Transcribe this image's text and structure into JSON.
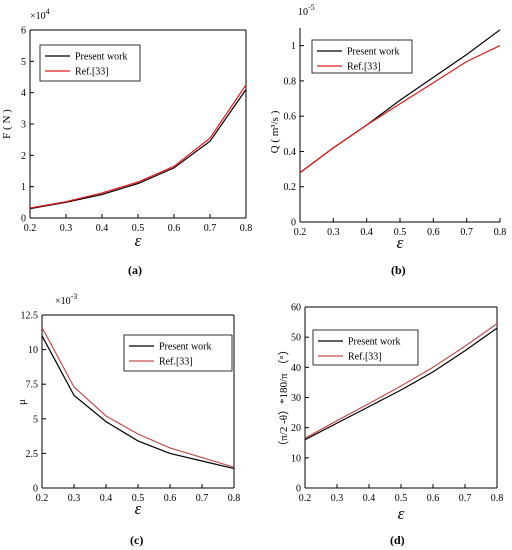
{
  "chart_data": [
    {
      "id": "a",
      "caption": "(a)",
      "type": "line",
      "ylabel": "F ( N )",
      "xlabel": "ε",
      "exponent": "×10",
      "exponent_power": "4",
      "xlim": [
        0.2,
        0.8
      ],
      "ylim": [
        0,
        6
      ],
      "xticks": [
        0.2,
        0.3,
        0.4,
        0.5,
        0.6,
        0.7,
        0.8
      ],
      "yticks": [
        0,
        1,
        2,
        3,
        4,
        5,
        6
      ],
      "xtick_labels": [
        "0.2",
        "0.3",
        "0.4",
        "0.5",
        "0.6",
        "0.7",
        "0.8"
      ],
      "ytick_labels": [
        "0",
        "1",
        "2",
        "3",
        "4",
        "5",
        "6"
      ],
      "box": "full",
      "legend_position": "top-left",
      "series": [
        {
          "name": "Present work",
          "color": "#000000",
          "x": [
            0.2,
            0.3,
            0.4,
            0.5,
            0.6,
            0.7,
            0.8
          ],
          "y": [
            0.3,
            0.5,
            0.75,
            1.1,
            1.6,
            2.45,
            4.1
          ]
        },
        {
          "name": "Ref.[33]",
          "color": "#e31a1c",
          "x": [
            0.2,
            0.3,
            0.4,
            0.5,
            0.6,
            0.7,
            0.8
          ],
          "y": [
            0.32,
            0.52,
            0.8,
            1.15,
            1.65,
            2.55,
            4.25
          ]
        }
      ]
    },
    {
      "id": "b",
      "caption": "(b)",
      "type": "line",
      "ylabel": "Q ( m³/s )",
      "xlabel": "ε",
      "exponent": "10",
      "exponent_power": "-5",
      "xlim": [
        0.2,
        0.8
      ],
      "ylim": [
        0,
        1.1
      ],
      "xticks": [
        0.2,
        0.3,
        0.4,
        0.5,
        0.6,
        0.7,
        0.8
      ],
      "yticks": [
        0,
        0.2,
        0.4,
        0.6,
        0.8,
        1
      ],
      "xtick_labels": [
        "0.2",
        "0.3",
        "0.4",
        "0.5",
        "0.6",
        "0.7",
        "0.8"
      ],
      "ytick_labels": [
        "0",
        "0.2",
        "0.4",
        "0.6",
        "0.8",
        "1"
      ],
      "box": "left-bottom",
      "legend_position": "top-left",
      "series": [
        {
          "name": "Present work",
          "color": "#000000",
          "x": [
            0.2,
            0.3,
            0.4,
            0.5,
            0.6,
            0.7,
            0.8
          ],
          "y": [
            0.28,
            0.42,
            0.55,
            0.69,
            0.82,
            0.95,
            1.09
          ]
        },
        {
          "name": "Ref.[33]",
          "color": "#e31a1c",
          "x": [
            0.2,
            0.3,
            0.4,
            0.5,
            0.6,
            0.7,
            0.8
          ],
          "y": [
            0.28,
            0.42,
            0.55,
            0.67,
            0.79,
            0.91,
            1.0
          ]
        }
      ]
    },
    {
      "id": "c",
      "caption": "(c)",
      "type": "line",
      "ylabel": "μ",
      "xlabel": "ε",
      "exponent": "×10",
      "exponent_power": "-3",
      "xlim": [
        0.2,
        0.8
      ],
      "ylim": [
        0,
        12.5
      ],
      "xticks": [
        0.2,
        0.3,
        0.4,
        0.5,
        0.6,
        0.7,
        0.8
      ],
      "yticks": [
        0,
        2.5,
        5,
        7.5,
        10,
        12.5
      ],
      "xtick_labels": [
        "0.2",
        "0.3",
        "0.4",
        "0.5",
        "0.6",
        "0.7",
        "0.8"
      ],
      "ytick_labels": [
        "0",
        "2.5",
        "5",
        "7.5",
        "10",
        "12.5"
      ],
      "box": "full",
      "legend_position": "top-right",
      "series": [
        {
          "name": "Present work",
          "color": "#000000",
          "x": [
            0.2,
            0.3,
            0.4,
            0.5,
            0.6,
            0.7,
            0.8
          ],
          "y": [
            11.0,
            6.7,
            4.8,
            3.4,
            2.5,
            1.95,
            1.4
          ]
        },
        {
          "name": "Ref.[33]",
          "color": "#c0504d",
          "x": [
            0.2,
            0.3,
            0.4,
            0.5,
            0.6,
            0.7,
            0.8
          ],
          "y": [
            11.6,
            7.3,
            5.2,
            3.9,
            2.9,
            2.2,
            1.5
          ]
        }
      ]
    },
    {
      "id": "d",
      "caption": "(d)",
      "type": "line",
      "ylabel": "（π/2 -θ）*180/π （°）",
      "xlabel": "ε",
      "exponent": "",
      "exponent_power": "",
      "xlim": [
        0.2,
        0.8
      ],
      "ylim": [
        0,
        60
      ],
      "xticks": [
        0.2,
        0.3,
        0.4,
        0.5,
        0.6,
        0.7,
        0.8
      ],
      "yticks": [
        0,
        10,
        20,
        30,
        40,
        50,
        60
      ],
      "xtick_labels": [
        "0.2",
        "0.3",
        "0.4",
        "0.5",
        "0.6",
        "0.7",
        "0.8"
      ],
      "ytick_labels": [
        "0",
        "10",
        "20",
        "30",
        "40",
        "50",
        "60"
      ],
      "box": "full",
      "legend_position": "top-left",
      "series": [
        {
          "name": "Present work",
          "color": "#000000",
          "x": [
            0.2,
            0.3,
            0.4,
            0.5,
            0.6,
            0.7,
            0.8
          ],
          "y": [
            16,
            21.5,
            27,
            32.5,
            38.5,
            45.5,
            53
          ]
        },
        {
          "name": "Ref.[33]",
          "color": "#c0504d",
          "x": [
            0.2,
            0.3,
            0.4,
            0.5,
            0.6,
            0.7,
            0.8
          ],
          "y": [
            16.5,
            22.3,
            28,
            33.8,
            40,
            47,
            54.5
          ]
        }
      ]
    }
  ]
}
